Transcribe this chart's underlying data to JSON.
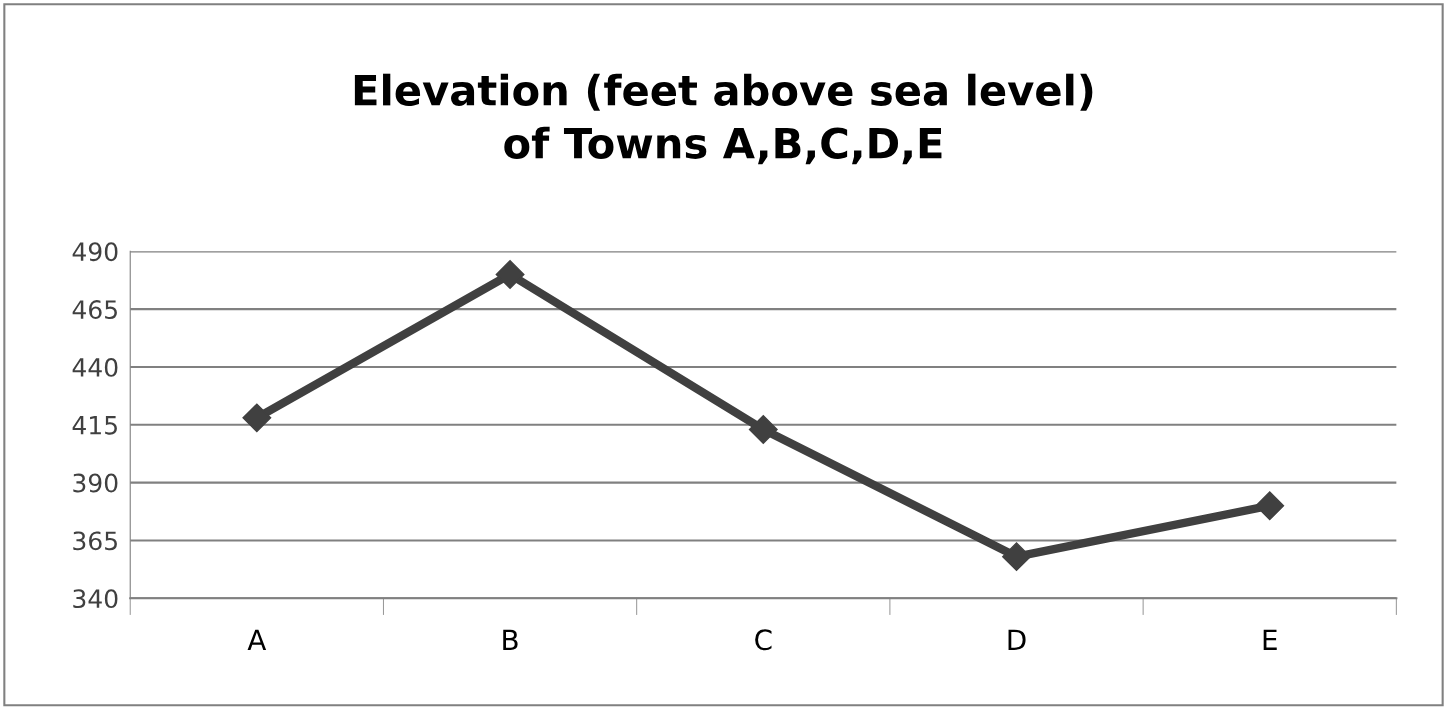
{
  "chart_data": {
    "type": "line",
    "title": "Elevation (feet above sea level)\nof Towns A,B,C,D,E",
    "categories": [
      "A",
      "B",
      "C",
      "D",
      "E"
    ],
    "series": [
      {
        "color": "#404040",
        "values": [
          418,
          480,
          413,
          358,
          380
        ]
      }
    ],
    "ylim": [
      340,
      490
    ],
    "yticks": [
      340,
      365,
      390,
      415,
      440,
      465,
      490
    ],
    "grid": "y",
    "marker": "diamond",
    "line_style": "solid",
    "legend": false
  }
}
